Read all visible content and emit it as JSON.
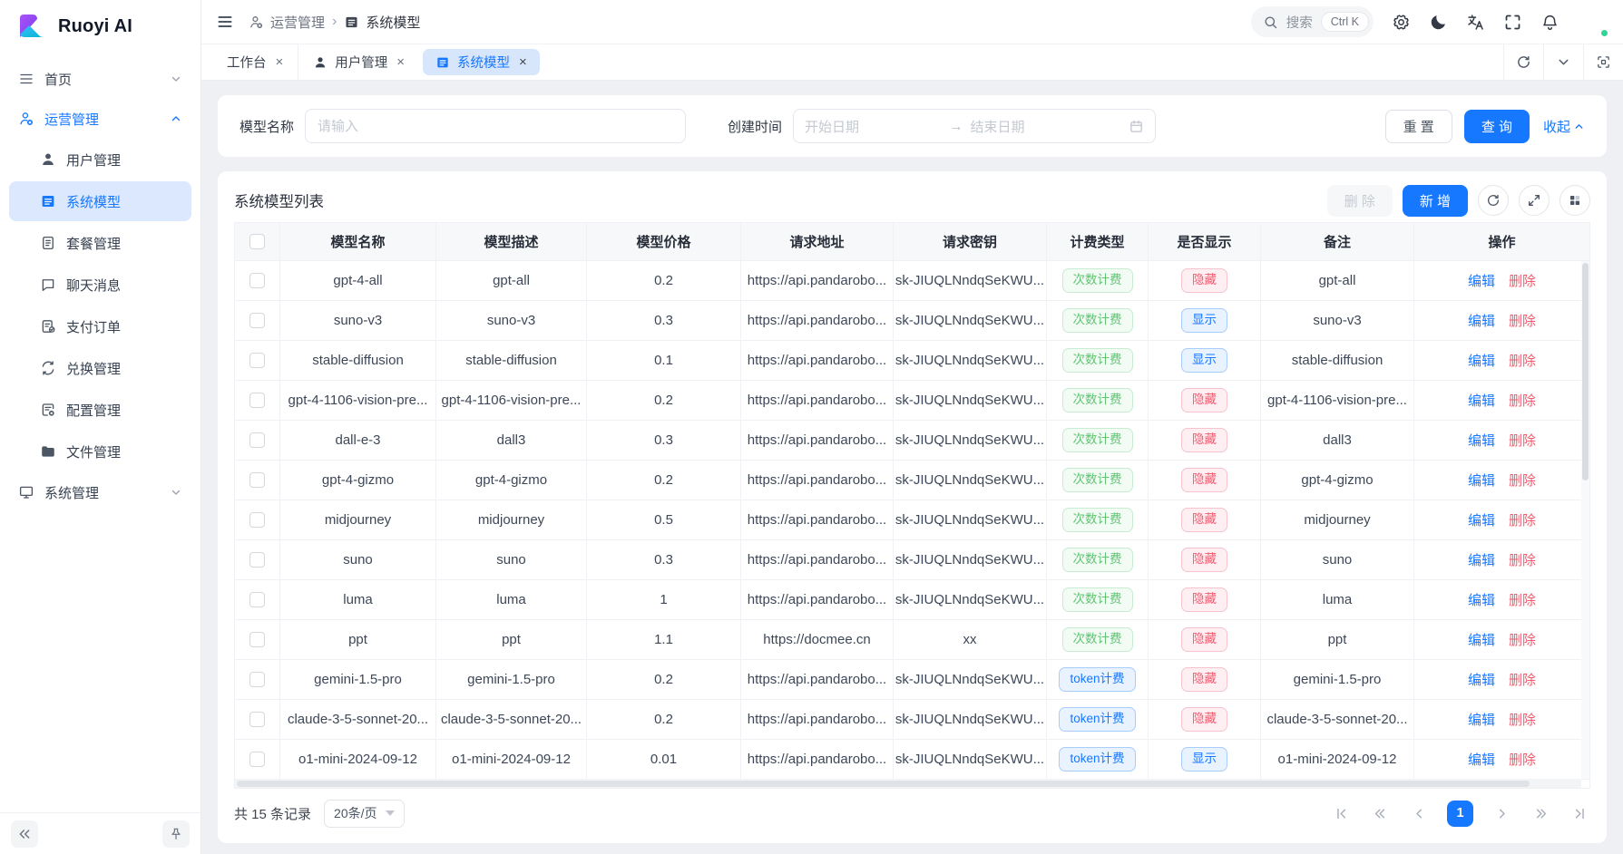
{
  "colors": {
    "primary": "#1677ff",
    "success": "#5fc573",
    "danger": "#f2596d",
    "active_bg": "#dbe8fd"
  },
  "logo": {
    "text": "Ruoyi AI"
  },
  "sidebar": {
    "items": [
      {
        "id": "home",
        "label": "首页",
        "icon": "menu-icon",
        "type": "group",
        "chevron": "down"
      },
      {
        "id": "operations",
        "label": "运营管理",
        "icon": "user-gear-icon",
        "type": "group",
        "chevron": "up",
        "groupActive": true
      },
      {
        "id": "user-management",
        "label": "用户管理",
        "icon": "user-icon",
        "type": "sub"
      },
      {
        "id": "system-model",
        "label": "系统模型",
        "icon": "list-icon",
        "type": "sub",
        "active": true
      },
      {
        "id": "package-management",
        "label": "套餐管理",
        "icon": "doc-icon",
        "type": "sub"
      },
      {
        "id": "chat-messages",
        "label": "聊天消息",
        "icon": "chat-icon",
        "type": "sub"
      },
      {
        "id": "payment-orders",
        "label": "支付订单",
        "icon": "pay-order-icon",
        "type": "sub"
      },
      {
        "id": "exchange-management",
        "label": "兑换管理",
        "icon": "exchange-icon",
        "type": "sub"
      },
      {
        "id": "config-management",
        "label": "配置管理",
        "icon": "config-icon",
        "type": "sub"
      },
      {
        "id": "file-management",
        "label": "文件管理",
        "icon": "folder-icon",
        "type": "sub"
      },
      {
        "id": "system-management",
        "label": "系统管理",
        "icon": "monitor-icon",
        "type": "group",
        "chevron": "down"
      }
    ]
  },
  "header": {
    "breadcrumb": [
      {
        "label": "运营管理",
        "icon": "user-gear-icon"
      },
      {
        "label": "系统模型",
        "icon": "list-icon"
      }
    ],
    "search": {
      "placeholder": "搜索",
      "shortcut": "Ctrl K"
    }
  },
  "tabs": [
    {
      "id": "workbench",
      "label": "工作台"
    },
    {
      "id": "user-management",
      "label": "用户管理",
      "icon": "user-icon"
    },
    {
      "id": "system-model",
      "label": "系统模型",
      "icon": "list-icon",
      "active": true
    }
  ],
  "filter": {
    "model_name_label": "模型名称",
    "model_name_placeholder": "请输入",
    "create_time_label": "创建时间",
    "start_placeholder": "开始日期",
    "end_placeholder": "结束日期",
    "reset_label": "重 置",
    "search_label": "查 询",
    "collapse_label": "收起"
  },
  "table": {
    "title": "系统模型列表",
    "delete_label": "删 除",
    "add_label": "新 增",
    "columns": [
      "模型名称",
      "模型描述",
      "模型价格",
      "请求地址",
      "请求密钥",
      "计费类型",
      "是否显示",
      "备注",
      "操作"
    ],
    "edit_label": "编辑",
    "row_delete_label": "删除",
    "billing_types": {
      "count": "次数计费",
      "token": "token计费"
    },
    "visibility_types": {
      "hidden": "隐藏",
      "visible": "显示"
    },
    "rows": [
      {
        "name": "gpt-4-all",
        "desc": "gpt-all",
        "price": "0.2",
        "url": "https://api.pandarobo...",
        "key": "sk-JIUQLNndqSeKWU...",
        "billing": "count",
        "visibility": "hidden",
        "remark": "gpt-all"
      },
      {
        "name": "suno-v3",
        "desc": "suno-v3",
        "price": "0.3",
        "url": "https://api.pandarobo...",
        "key": "sk-JIUQLNndqSeKWU...",
        "billing": "count",
        "visibility": "visible",
        "remark": "suno-v3"
      },
      {
        "name": "stable-diffusion",
        "desc": "stable-diffusion",
        "price": "0.1",
        "url": "https://api.pandarobo...",
        "key": "sk-JIUQLNndqSeKWU...",
        "billing": "count",
        "visibility": "visible",
        "remark": "stable-diffusion"
      },
      {
        "name": "gpt-4-1106-vision-pre...",
        "desc": "gpt-4-1106-vision-pre...",
        "price": "0.2",
        "url": "https://api.pandarobo...",
        "key": "sk-JIUQLNndqSeKWU...",
        "billing": "count",
        "visibility": "hidden",
        "remark": "gpt-4-1106-vision-pre..."
      },
      {
        "name": "dall-e-3",
        "desc": "dall3",
        "price": "0.3",
        "url": "https://api.pandarobo...",
        "key": "sk-JIUQLNndqSeKWU...",
        "billing": "count",
        "visibility": "hidden",
        "remark": "dall3"
      },
      {
        "name": "gpt-4-gizmo",
        "desc": "gpt-4-gizmo",
        "price": "0.2",
        "url": "https://api.pandarobo...",
        "key": "sk-JIUQLNndqSeKWU...",
        "billing": "count",
        "visibility": "hidden",
        "remark": "gpt-4-gizmo"
      },
      {
        "name": "midjourney",
        "desc": "midjourney",
        "price": "0.5",
        "url": "https://api.pandarobo...",
        "key": "sk-JIUQLNndqSeKWU...",
        "billing": "count",
        "visibility": "hidden",
        "remark": "midjourney"
      },
      {
        "name": "suno",
        "desc": "suno",
        "price": "0.3",
        "url": "https://api.pandarobo...",
        "key": "sk-JIUQLNndqSeKWU...",
        "billing": "count",
        "visibility": "hidden",
        "remark": "suno"
      },
      {
        "name": "luma",
        "desc": "luma",
        "price": "1",
        "url": "https://api.pandarobo...",
        "key": "sk-JIUQLNndqSeKWU...",
        "billing": "count",
        "visibility": "hidden",
        "remark": "luma"
      },
      {
        "name": "ppt",
        "desc": "ppt",
        "price": "1.1",
        "url": "https://docmee.cn",
        "key": "xx",
        "billing": "count",
        "visibility": "hidden",
        "remark": "ppt"
      },
      {
        "name": "gemini-1.5-pro",
        "desc": "gemini-1.5-pro",
        "price": "0.2",
        "url": "https://api.pandarobo...",
        "key": "sk-JIUQLNndqSeKWU...",
        "billing": "token",
        "visibility": "hidden",
        "remark": "gemini-1.5-pro"
      },
      {
        "name": "claude-3-5-sonnet-20...",
        "desc": "claude-3-5-sonnet-20...",
        "price": "0.2",
        "url": "https://api.pandarobo...",
        "key": "sk-JIUQLNndqSeKWU...",
        "billing": "token",
        "visibility": "hidden",
        "remark": "claude-3-5-sonnet-20..."
      },
      {
        "name": "o1-mini-2024-09-12",
        "desc": "o1-mini-2024-09-12",
        "price": "0.01",
        "url": "https://api.pandarobo...",
        "key": "sk-JIUQLNndqSeKWU...",
        "billing": "token",
        "visibility": "visible",
        "remark": "o1-mini-2024-09-12"
      }
    ]
  },
  "pagination": {
    "total_text": "共 15 条记录",
    "page_size": "20条/页",
    "current_page": "1"
  }
}
